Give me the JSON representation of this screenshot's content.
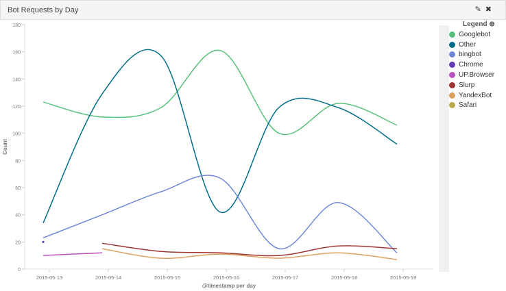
{
  "panel": {
    "title": "Bot Requests by Day",
    "edit_icon": "✎",
    "close_icon": "✖"
  },
  "legend": {
    "title": "Legend"
  },
  "chart_data": {
    "type": "line",
    "title": "Bot Requests by Day",
    "xlabel": "@timestamp per day",
    "ylabel": "Count",
    "ylim": [
      0,
      180
    ],
    "yticks": [
      0,
      20,
      40,
      60,
      80,
      100,
      120,
      140,
      160,
      180
    ],
    "categories": [
      "2015-05-13",
      "2015-05-14",
      "2015-05-15",
      "2015-05-16",
      "2015-05-17",
      "2015-05-18",
      "2015-05-19"
    ],
    "legend_position": "right",
    "series": [
      {
        "name": "Googlebot",
        "color": "#57c17b",
        "values": [
          123,
          112,
          119,
          161,
          100,
          122,
          106
        ]
      },
      {
        "name": "Other",
        "color": "#006e8a",
        "values": [
          34,
          129,
          157,
          42,
          119,
          119,
          92
        ]
      },
      {
        "name": "bingbot",
        "color": "#6f87d8",
        "values": [
          23,
          40,
          57,
          67,
          15,
          49,
          12
        ]
      },
      {
        "name": "Chrome",
        "color": "#663db8",
        "values": [
          20,
          null,
          null,
          null,
          null,
          null,
          null
        ]
      },
      {
        "name": "UP.Browser",
        "color": "#bc52bc",
        "values": [
          10,
          12,
          null,
          null,
          null,
          null,
          null
        ]
      },
      {
        "name": "Slurp",
        "color": "#9e3533",
        "values": [
          null,
          19,
          13,
          12,
          10,
          17,
          15
        ]
      },
      {
        "name": "YandexBot",
        "color": "#daa05d",
        "values": [
          null,
          15,
          8,
          11,
          8,
          12,
          7
        ]
      },
      {
        "name": "Safari",
        "color": "#b9a94a",
        "values": [
          null,
          null,
          null,
          null,
          null,
          null,
          null
        ]
      }
    ]
  }
}
